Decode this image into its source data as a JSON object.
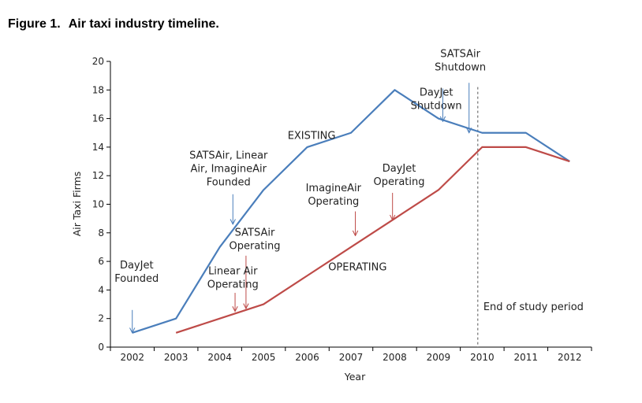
{
  "figure": {
    "number": "Figure 1.",
    "caption": "Air taxi industry timeline."
  },
  "colors": {
    "existing": "#4a7ebb",
    "operating": "#be4b48",
    "axis": "#000000",
    "divider": "#555555"
  },
  "chart_data": {
    "type": "line",
    "title": "Figure 1. Air taxi industry timeline.",
    "xlabel": "Year",
    "ylabel": "Air Taxi Firms",
    "x": [
      2002,
      2003,
      2004,
      2005,
      2006,
      2007,
      2008,
      2009,
      2010,
      2011,
      2012
    ],
    "ylim": [
      0,
      20
    ],
    "yticks": [
      0,
      2,
      4,
      6,
      8,
      10,
      12,
      14,
      16,
      18,
      20
    ],
    "grid": false,
    "legend": "none",
    "series": [
      {
        "name": "EXISTING",
        "color": "#4a7ebb",
        "points": [
          [
            2002,
            1
          ],
          [
            2003,
            2
          ],
          [
            2004,
            7
          ],
          [
            2005,
            11
          ],
          [
            2006,
            14
          ],
          [
            2007,
            15
          ],
          [
            2008,
            18
          ],
          [
            2009,
            16
          ],
          [
            2010,
            15
          ],
          [
            2011,
            15
          ],
          [
            2012,
            13
          ]
        ]
      },
      {
        "name": "OPERATING",
        "color": "#be4b48",
        "points": [
          [
            2003,
            1
          ],
          [
            2004,
            2
          ],
          [
            2005,
            3
          ],
          [
            2006,
            5
          ],
          [
            2007,
            7
          ],
          [
            2008,
            9
          ],
          [
            2009,
            11
          ],
          [
            2010,
            14
          ],
          [
            2011,
            14
          ],
          [
            2012,
            13
          ]
        ]
      }
    ],
    "series_labels": [
      {
        "series": "EXISTING",
        "text": "EXISTING",
        "x": 2006.1,
        "y": 14.8
      },
      {
        "series": "OPERATING",
        "text": "OPERATING",
        "x": 2007.15,
        "y": 5.6
      }
    ],
    "divider": {
      "x": 2009.9,
      "label": "End of study period",
      "label_y": 2.8
    },
    "annotations": [
      {
        "lines": [
          "DayJet",
          "Founded"
        ],
        "color": "#4a7ebb",
        "text_x": 2002.1,
        "text_y": 5.5,
        "arrow_x": 2002.0,
        "arrow_from": 2.6,
        "arrow_to": 1.0
      },
      {
        "lines": [
          "SATSAir, Linear",
          "Air, ImagineAir",
          "Founded"
        ],
        "color": "#4a7ebb",
        "text_x": 2004.2,
        "text_y": 13.2,
        "arrow_x": 2004.3,
        "arrow_from": 10.7,
        "arrow_to": 8.6
      },
      {
        "lines": [
          "SATSAir",
          "Operating"
        ],
        "color": "#be4b48",
        "text_x": 2004.8,
        "text_y": 7.8,
        "arrow_x": 2004.6,
        "arrow_from": 6.4,
        "arrow_to": 2.7
      },
      {
        "lines": [
          "Linear Air",
          "Operating"
        ],
        "color": "#be4b48",
        "text_x": 2004.3,
        "text_y": 5.1,
        "arrow_x": 2004.35,
        "arrow_from": 3.8,
        "arrow_to": 2.5
      },
      {
        "lines": [
          "ImagineAir",
          "Operating"
        ],
        "color": "#be4b48",
        "text_x": 2006.6,
        "text_y": 10.9,
        "arrow_x": 2007.1,
        "arrow_from": 9.5,
        "arrow_to": 7.8
      },
      {
        "lines": [
          "DayJet",
          "Operating"
        ],
        "color": "#be4b48",
        "text_x": 2008.1,
        "text_y": 12.3,
        "arrow_x": 2007.95,
        "arrow_from": 10.8,
        "arrow_to": 8.9
      },
      {
        "lines": [
          "DayJet",
          "Shutdown"
        ],
        "color": "#4a7ebb",
        "text_x": 2008.95,
        "text_y": 17.6,
        "arrow_x": 2009.1,
        "arrow_from": 18.1,
        "arrow_to": 15.8
      },
      {
        "lines": [
          "SATSAir",
          "Shutdown"
        ],
        "color": "#4a7ebb",
        "text_x": 2009.5,
        "text_y": 20.3,
        "arrow_x": 2009.7,
        "arrow_from": 18.5,
        "arrow_to": 15.0
      }
    ]
  }
}
